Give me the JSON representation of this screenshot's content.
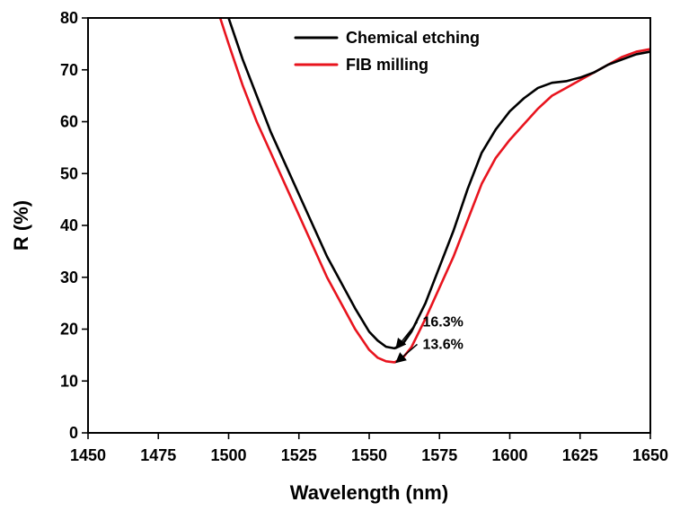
{
  "chart_data": {
    "type": "line",
    "title": "",
    "xlabel": "Wavelength (nm)",
    "ylabel": "R (%)",
    "xlim": [
      1450,
      1650
    ],
    "ylim": [
      0,
      80
    ],
    "x_ticks": [
      1450,
      1475,
      1500,
      1525,
      1550,
      1575,
      1600,
      1625,
      1650
    ],
    "y_ticks": [
      0,
      10,
      20,
      30,
      40,
      50,
      60,
      70,
      80
    ],
    "grid": false,
    "legend_position": "top-right",
    "series": [
      {
        "name": "Chemical etching",
        "color": "#000000",
        "x": [
          1500,
          1505,
          1510,
          1515,
          1520,
          1525,
          1530,
          1535,
          1540,
          1545,
          1550,
          1553,
          1556,
          1559,
          1562,
          1565,
          1570,
          1575,
          1580,
          1585,
          1590,
          1595,
          1600,
          1605,
          1610,
          1615,
          1620,
          1625,
          1630,
          1635,
          1640,
          1645,
          1650
        ],
        "values": [
          80,
          72,
          65,
          58,
          52,
          46,
          40,
          34,
          29,
          24,
          19.5,
          17.8,
          16.6,
          16.3,
          17.2,
          19.5,
          25,
          32,
          39,
          47,
          54,
          58.5,
          62,
          64.5,
          66.5,
          67.5,
          67.8,
          68.5,
          69.5,
          71,
          72,
          73,
          73.5
        ]
      },
      {
        "name": "FIB milling",
        "color": "#e8141e",
        "x": [
          1497,
          1500,
          1505,
          1510,
          1515,
          1520,
          1525,
          1530,
          1535,
          1540,
          1545,
          1550,
          1553,
          1556,
          1559,
          1562,
          1565,
          1570,
          1575,
          1580,
          1585,
          1590,
          1595,
          1600,
          1605,
          1610,
          1615,
          1620,
          1625,
          1630,
          1635,
          1640,
          1645,
          1650
        ],
        "values": [
          80,
          75,
          67,
          60,
          54,
          48,
          42,
          36,
          30,
          25,
          20,
          16,
          14.5,
          13.8,
          13.6,
          14.5,
          16.5,
          22,
          28,
          34,
          41,
          48,
          53,
          56.5,
          59.5,
          62.5,
          65,
          66.5,
          68,
          69.5,
          71,
          72.5,
          73.5,
          74
        ]
      }
    ],
    "annotations": [
      {
        "text": "16.3%",
        "x": 1559,
        "y": 16.3,
        "text_x": 1569,
        "text_y": 20.5
      },
      {
        "text": "13.6%",
        "x": 1559,
        "y": 13.6,
        "text_x": 1569,
        "text_y": 16.2
      }
    ]
  }
}
